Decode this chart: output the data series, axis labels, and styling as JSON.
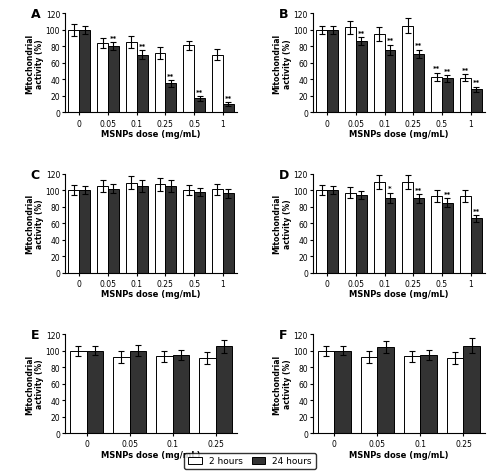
{
  "panels": [
    {
      "label": "A",
      "categories": [
        "0",
        "0.05",
        "0.1",
        "0.25",
        "0.5",
        "1"
      ],
      "bar_white": [
        100,
        84,
        85,
        72,
        81,
        70
      ],
      "bar_white_err": [
        7,
        6,
        7,
        7,
        6,
        7
      ],
      "bar_dark": [
        100,
        80,
        70,
        35,
        17,
        10
      ],
      "bar_dark_err": [
        5,
        5,
        5,
        4,
        3,
        2
      ],
      "sig_white": [
        "",
        "",
        "",
        "",
        "",
        ""
      ],
      "sig_dark": [
        "",
        "**",
        "**",
        "**",
        "**",
        "**"
      ],
      "ylim": [
        0,
        120
      ],
      "yticks": [
        0,
        20,
        40,
        60,
        80,
        100,
        120
      ],
      "n_cats": 6
    },
    {
      "label": "B",
      "categories": [
        "0",
        "0.05",
        "0.1",
        "0.25",
        "0.5",
        "1"
      ],
      "bar_white": [
        100,
        103,
        95,
        105,
        43,
        42
      ],
      "bar_white_err": [
        5,
        8,
        8,
        9,
        5,
        4
      ],
      "bar_dark": [
        100,
        86,
        76,
        71,
        41,
        28
      ],
      "bar_dark_err": [
        5,
        5,
        6,
        5,
        4,
        3
      ],
      "sig_white": [
        "",
        "",
        "",
        "",
        "**",
        "**"
      ],
      "sig_dark": [
        "",
        "**",
        "**",
        "**",
        "**",
        "**"
      ],
      "ylim": [
        0,
        120
      ],
      "yticks": [
        0,
        20,
        40,
        60,
        80,
        100,
        120
      ],
      "n_cats": 6
    },
    {
      "label": "C",
      "categories": [
        "0",
        "0.05",
        "0.1",
        "0.25",
        "0.5",
        "1"
      ],
      "bar_white": [
        100,
        105,
        109,
        107,
        100,
        101
      ],
      "bar_white_err": [
        6,
        7,
        8,
        8,
        6,
        7
      ],
      "bar_dark": [
        100,
        102,
        105,
        105,
        98,
        96
      ],
      "bar_dark_err": [
        5,
        6,
        7,
        7,
        5,
        5
      ],
      "sig_white": [
        "",
        "",
        "",
        "",
        "",
        ""
      ],
      "sig_dark": [
        "",
        "",
        "",
        "",
        "",
        ""
      ],
      "ylim": [
        0,
        120
      ],
      "yticks": [
        0,
        20,
        40,
        60,
        80,
        100,
        120
      ],
      "n_cats": 6
    },
    {
      "label": "D",
      "categories": [
        "0",
        "0.05",
        "0.1",
        "0.25",
        "0.5",
        "1"
      ],
      "bar_white": [
        100,
        97,
        110,
        110,
        93,
        93
      ],
      "bar_white_err": [
        6,
        7,
        9,
        9,
        7,
        7
      ],
      "bar_dark": [
        100,
        94,
        91,
        90,
        85,
        66
      ],
      "bar_dark_err": [
        5,
        5,
        6,
        5,
        5,
        4
      ],
      "sig_white": [
        "",
        "",
        "",
        "",
        "",
        ""
      ],
      "sig_dark": [
        "",
        "",
        "*",
        "**",
        "**",
        "**"
      ],
      "ylim": [
        0,
        120
      ],
      "yticks": [
        0,
        20,
        40,
        60,
        80,
        100,
        120
      ],
      "n_cats": 6
    },
    {
      "label": "E",
      "categories": [
        "0",
        "0.05",
        "0.1",
        "0.25"
      ],
      "bar_white": [
        100,
        92,
        93,
        91
      ],
      "bar_white_err": [
        6,
        7,
        7,
        7
      ],
      "bar_dark": [
        100,
        100,
        95,
        105
      ],
      "bar_dark_err": [
        5,
        7,
        6,
        8
      ],
      "sig_white": [
        "",
        "",
        "",
        ""
      ],
      "sig_dark": [
        "",
        "",
        "",
        ""
      ],
      "ylim": [
        0,
        120
      ],
      "yticks": [
        0,
        20,
        40,
        60,
        80,
        100,
        120
      ],
      "n_cats": 4
    },
    {
      "label": "F",
      "categories": [
        "0",
        "0.05",
        "0.1",
        "0.25"
      ],
      "bar_white": [
        100,
        92,
        93,
        91
      ],
      "bar_white_err": [
        6,
        7,
        7,
        7
      ],
      "bar_dark": [
        100,
        104,
        95,
        106
      ],
      "bar_dark_err": [
        5,
        7,
        6,
        9
      ],
      "sig_white": [
        "",
        "",
        "",
        ""
      ],
      "sig_dark": [
        "",
        "",
        "",
        ""
      ],
      "ylim": [
        0,
        120
      ],
      "yticks": [
        0,
        20,
        40,
        60,
        80,
        100,
        120
      ],
      "n_cats": 4
    }
  ],
  "color_white": "#ffffff",
  "color_dark": "#333333",
  "bar_edge_color": "#000000",
  "xlabel": "MSNPs dose (mg/mL)",
  "ylabel": "Mitochondrial\nactivity (%)",
  "legend_labels": [
    "2 hours",
    "24 hours"
  ],
  "bar_width": 0.38,
  "capsize": 2,
  "error_linewidth": 0.8,
  "sig1_marker": "*",
  "sig2_marker": "**"
}
